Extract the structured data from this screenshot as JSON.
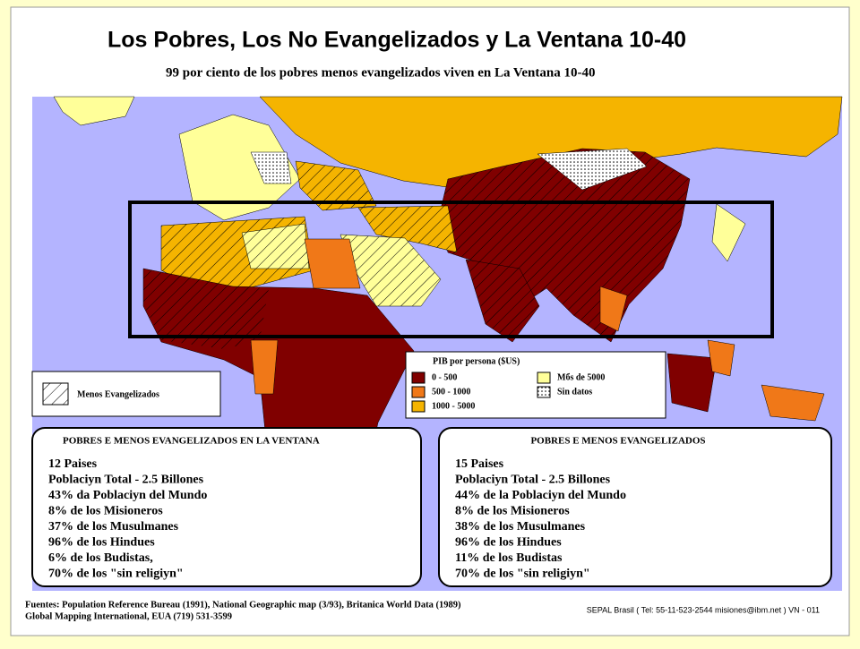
{
  "header": {
    "title": "Los Pobres, Los No Evangelizados y La Ventana 10-40",
    "subtitle": "99 por ciento de los pobres menos evangelizados viven en La Ventana 10-40"
  },
  "legend_hatch": {
    "label": "Menos Evangelizados"
  },
  "legend_gdp": {
    "title": "PIB por persona ($US)",
    "items": [
      {
        "label": "0 - 500",
        "color": "#800000"
      },
      {
        "label": "500 - 1000",
        "color": "#f07818"
      },
      {
        "label": "1000 - 5000",
        "color": "#f5b400"
      },
      {
        "label": "Mбs de 5000",
        "color": "#ffff99"
      },
      {
        "label": "Sin datos",
        "color": "#ffffff"
      }
    ]
  },
  "boxes": [
    {
      "title": "POBRES E MENOS EVANGELIZADOS EN LA VENTANA",
      "lines": [
        "12 Paises",
        "Poblaciyn Total - 2.5 Billones",
        "43% da Poblaciyn del Mundo",
        "8% de los Misioneros",
        "37% de los Musulmanes",
        "96% de los Hindues",
        "6% de los Budistas,",
        "70% de los \"sin religiyn\""
      ]
    },
    {
      "title": "POBRES E MENOS EVANGELIZADOS",
      "lines": [
        "15 Paises",
        "Poblaciyn Total - 2.5 Billones",
        "44% de la Poblaciyn del Mundo",
        "8% de los Misioneros",
        "38% de los Musulmanes",
        "96% de los Hindues",
        "11% de los Budistas",
        "70% de los \"sin religiyn\""
      ]
    }
  ],
  "footer": {
    "sources": [
      "Fuentes: Population Reference Bureau (1991), National Geographic map (3/93), Britanica World Data (1989)",
      "Global Mapping International, EUA (719) 531-3599"
    ],
    "credit": "SEPAL Brasil ( Tel: 55-11-523-2544 misiones@ibm.net )  VN - 011"
  }
}
